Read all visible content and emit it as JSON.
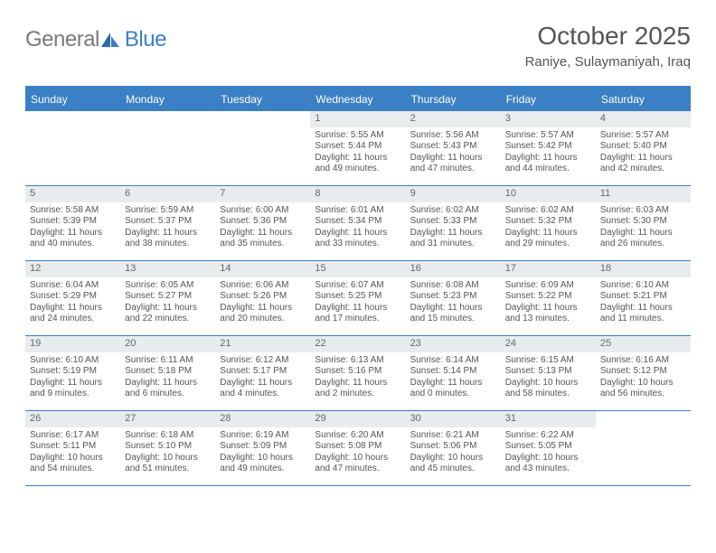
{
  "logo": {
    "general": "General",
    "blue": "Blue"
  },
  "header": {
    "month_title": "October 2025",
    "location": "Raniye, Sulaymaniyah, Iraq"
  },
  "colors": {
    "accent": "#3b7fc4",
    "header_bg": "#3b7fc4",
    "daynum_bg": "#e9eced",
    "text": "#555555",
    "logo_gray": "#7a7a7a"
  },
  "day_names": [
    "Sunday",
    "Monday",
    "Tuesday",
    "Wednesday",
    "Thursday",
    "Friday",
    "Saturday"
  ],
  "weeks": [
    [
      {
        "n": "",
        "sunrise": "",
        "sunset": "",
        "daylight": "",
        "empty": true
      },
      {
        "n": "",
        "sunrise": "",
        "sunset": "",
        "daylight": "",
        "empty": true
      },
      {
        "n": "",
        "sunrise": "",
        "sunset": "",
        "daylight": "",
        "empty": true
      },
      {
        "n": "1",
        "sunrise": "Sunrise: 5:55 AM",
        "sunset": "Sunset: 5:44 PM",
        "daylight": "Daylight: 11 hours and 49 minutes."
      },
      {
        "n": "2",
        "sunrise": "Sunrise: 5:56 AM",
        "sunset": "Sunset: 5:43 PM",
        "daylight": "Daylight: 11 hours and 47 minutes."
      },
      {
        "n": "3",
        "sunrise": "Sunrise: 5:57 AM",
        "sunset": "Sunset: 5:42 PM",
        "daylight": "Daylight: 11 hours and 44 minutes."
      },
      {
        "n": "4",
        "sunrise": "Sunrise: 5:57 AM",
        "sunset": "Sunset: 5:40 PM",
        "daylight": "Daylight: 11 hours and 42 minutes."
      }
    ],
    [
      {
        "n": "5",
        "sunrise": "Sunrise: 5:58 AM",
        "sunset": "Sunset: 5:39 PM",
        "daylight": "Daylight: 11 hours and 40 minutes."
      },
      {
        "n": "6",
        "sunrise": "Sunrise: 5:59 AM",
        "sunset": "Sunset: 5:37 PM",
        "daylight": "Daylight: 11 hours and 38 minutes."
      },
      {
        "n": "7",
        "sunrise": "Sunrise: 6:00 AM",
        "sunset": "Sunset: 5:36 PM",
        "daylight": "Daylight: 11 hours and 35 minutes."
      },
      {
        "n": "8",
        "sunrise": "Sunrise: 6:01 AM",
        "sunset": "Sunset: 5:34 PM",
        "daylight": "Daylight: 11 hours and 33 minutes."
      },
      {
        "n": "9",
        "sunrise": "Sunrise: 6:02 AM",
        "sunset": "Sunset: 5:33 PM",
        "daylight": "Daylight: 11 hours and 31 minutes."
      },
      {
        "n": "10",
        "sunrise": "Sunrise: 6:02 AM",
        "sunset": "Sunset: 5:32 PM",
        "daylight": "Daylight: 11 hours and 29 minutes."
      },
      {
        "n": "11",
        "sunrise": "Sunrise: 6:03 AM",
        "sunset": "Sunset: 5:30 PM",
        "daylight": "Daylight: 11 hours and 26 minutes."
      }
    ],
    [
      {
        "n": "12",
        "sunrise": "Sunrise: 6:04 AM",
        "sunset": "Sunset: 5:29 PM",
        "daylight": "Daylight: 11 hours and 24 minutes."
      },
      {
        "n": "13",
        "sunrise": "Sunrise: 6:05 AM",
        "sunset": "Sunset: 5:27 PM",
        "daylight": "Daylight: 11 hours and 22 minutes."
      },
      {
        "n": "14",
        "sunrise": "Sunrise: 6:06 AM",
        "sunset": "Sunset: 5:26 PM",
        "daylight": "Daylight: 11 hours and 20 minutes."
      },
      {
        "n": "15",
        "sunrise": "Sunrise: 6:07 AM",
        "sunset": "Sunset: 5:25 PM",
        "daylight": "Daylight: 11 hours and 17 minutes."
      },
      {
        "n": "16",
        "sunrise": "Sunrise: 6:08 AM",
        "sunset": "Sunset: 5:23 PM",
        "daylight": "Daylight: 11 hours and 15 minutes."
      },
      {
        "n": "17",
        "sunrise": "Sunrise: 6:09 AM",
        "sunset": "Sunset: 5:22 PM",
        "daylight": "Daylight: 11 hours and 13 minutes."
      },
      {
        "n": "18",
        "sunrise": "Sunrise: 6:10 AM",
        "sunset": "Sunset: 5:21 PM",
        "daylight": "Daylight: 11 hours and 11 minutes."
      }
    ],
    [
      {
        "n": "19",
        "sunrise": "Sunrise: 6:10 AM",
        "sunset": "Sunset: 5:19 PM",
        "daylight": "Daylight: 11 hours and 9 minutes."
      },
      {
        "n": "20",
        "sunrise": "Sunrise: 6:11 AM",
        "sunset": "Sunset: 5:18 PM",
        "daylight": "Daylight: 11 hours and 6 minutes."
      },
      {
        "n": "21",
        "sunrise": "Sunrise: 6:12 AM",
        "sunset": "Sunset: 5:17 PM",
        "daylight": "Daylight: 11 hours and 4 minutes."
      },
      {
        "n": "22",
        "sunrise": "Sunrise: 6:13 AM",
        "sunset": "Sunset: 5:16 PM",
        "daylight": "Daylight: 11 hours and 2 minutes."
      },
      {
        "n": "23",
        "sunrise": "Sunrise: 6:14 AM",
        "sunset": "Sunset: 5:14 PM",
        "daylight": "Daylight: 11 hours and 0 minutes."
      },
      {
        "n": "24",
        "sunrise": "Sunrise: 6:15 AM",
        "sunset": "Sunset: 5:13 PM",
        "daylight": "Daylight: 10 hours and 58 minutes."
      },
      {
        "n": "25",
        "sunrise": "Sunrise: 6:16 AM",
        "sunset": "Sunset: 5:12 PM",
        "daylight": "Daylight: 10 hours and 56 minutes."
      }
    ],
    [
      {
        "n": "26",
        "sunrise": "Sunrise: 6:17 AM",
        "sunset": "Sunset: 5:11 PM",
        "daylight": "Daylight: 10 hours and 54 minutes."
      },
      {
        "n": "27",
        "sunrise": "Sunrise: 6:18 AM",
        "sunset": "Sunset: 5:10 PM",
        "daylight": "Daylight: 10 hours and 51 minutes."
      },
      {
        "n": "28",
        "sunrise": "Sunrise: 6:19 AM",
        "sunset": "Sunset: 5:09 PM",
        "daylight": "Daylight: 10 hours and 49 minutes."
      },
      {
        "n": "29",
        "sunrise": "Sunrise: 6:20 AM",
        "sunset": "Sunset: 5:08 PM",
        "daylight": "Daylight: 10 hours and 47 minutes."
      },
      {
        "n": "30",
        "sunrise": "Sunrise: 6:21 AM",
        "sunset": "Sunset: 5:06 PM",
        "daylight": "Daylight: 10 hours and 45 minutes."
      },
      {
        "n": "31",
        "sunrise": "Sunrise: 6:22 AM",
        "sunset": "Sunset: 5:05 PM",
        "daylight": "Daylight: 10 hours and 43 minutes."
      },
      {
        "n": "",
        "sunrise": "",
        "sunset": "",
        "daylight": "",
        "empty": true
      }
    ]
  ]
}
